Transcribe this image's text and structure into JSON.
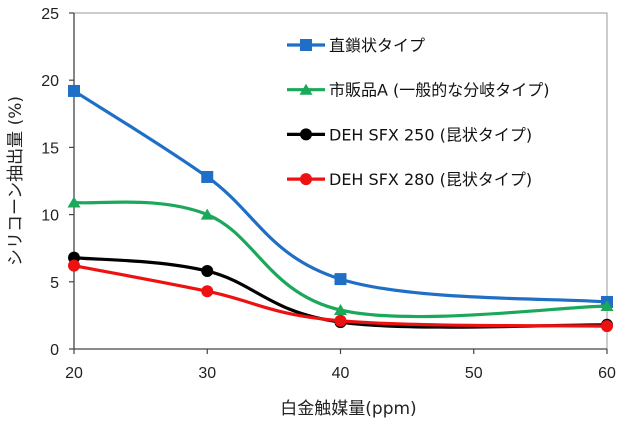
{
  "chart_data": {
    "type": "line",
    "title": "",
    "xlabel": "白金触媒量(ppm)",
    "ylabel": "シリコーン抽出量 (%)",
    "x": [
      20,
      30,
      40,
      60
    ],
    "xticks": [
      20,
      30,
      40,
      50,
      60
    ],
    "yticks": [
      0,
      5,
      10,
      15,
      20,
      25
    ],
    "xlim": [
      20,
      60
    ],
    "ylim": [
      0,
      25
    ],
    "grid": false,
    "legend_position": "top-right",
    "series": [
      {
        "name": "直鎖状タイプ",
        "values": [
          19.2,
          12.8,
          5.2,
          3.5
        ],
        "color": "#1f6fc6",
        "marker": "square"
      },
      {
        "name": "市販品A (一般的な分岐タイプ)",
        "values": [
          10.9,
          10.0,
          2.9,
          3.2
        ],
        "color": "#1ba85a",
        "marker": "triangle"
      },
      {
        "name": "DEH SFX 250 (昆状タイプ)",
        "values": [
          6.8,
          5.8,
          2.0,
          1.8
        ],
        "color": "#000000",
        "marker": "circle"
      },
      {
        "name": "DEH SFX 280 (昆状タイプ)",
        "values": [
          6.2,
          4.3,
          2.1,
          1.7
        ],
        "color": "#ee1111",
        "marker": "circle"
      }
    ]
  }
}
